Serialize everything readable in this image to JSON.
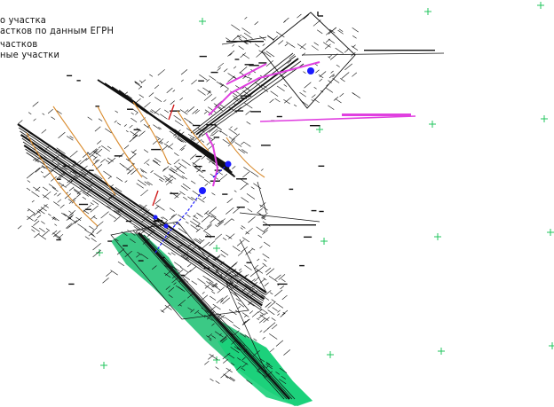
{
  "legend": {
    "items": [
      "о участка",
      "астков по данным ЕГРН",
      "частков",
      "ные участки"
    ]
  },
  "colors": {
    "background": "#ffffff",
    "linework": "#111111",
    "green_fill": "#19c070",
    "grid_cross": "#22c55e",
    "magenta": "#e040e0",
    "blue": "#1a1aff",
    "orange": "#d98a2b",
    "red": "#d01c1c"
  },
  "grid_marker_icon": "plus-cross-icon"
}
